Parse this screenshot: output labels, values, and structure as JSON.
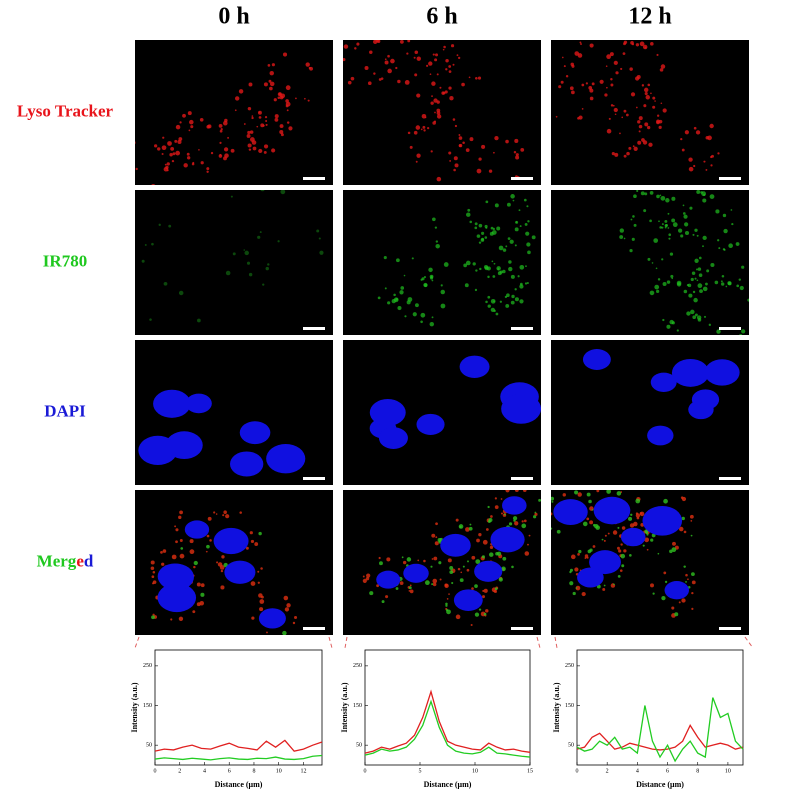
{
  "column_headers": [
    "0 h",
    "6 h",
    "12 h"
  ],
  "rows": [
    {
      "label": "Lyso Tracker",
      "color": "#e8141b"
    },
    {
      "label": "IR780",
      "color": "#1fc81f"
    },
    {
      "label": "DAPI",
      "color": "#1a1ad6"
    },
    {
      "label_parts": [
        {
          "text": "Merg",
          "color": "#1fc81f"
        },
        {
          "text": "e",
          "color": "#e8141b"
        },
        {
          "text": "d",
          "color": "#1a1ad6"
        }
      ]
    }
  ],
  "chart_data": [
    {
      "type": "line",
      "ylabel": "Intensity (a.u.)",
      "xlabel": "Distance (μm)",
      "x": [
        0,
        0.75,
        1.5,
        2.25,
        3,
        3.75,
        4.5,
        5.25,
        6,
        6.75,
        7.5,
        8.25,
        9,
        9.75,
        10.5,
        11.25,
        12,
        12.75,
        13.5
      ],
      "series": [
        {
          "color": "#e02020",
          "values": [
            35,
            40,
            38,
            45,
            50,
            42,
            40,
            48,
            55,
            45,
            42,
            38,
            60,
            45,
            62,
            35,
            40,
            50,
            58
          ]
        },
        {
          "color": "#22cc22",
          "values": [
            15,
            18,
            16,
            14,
            17,
            15,
            13,
            16,
            18,
            15,
            14,
            17,
            16,
            20,
            15,
            14,
            16,
            22,
            24
          ]
        }
      ],
      "xlim": [
        0,
        13.5
      ],
      "xticks": [
        0,
        2,
        4,
        6,
        8,
        10,
        12
      ],
      "ylim": [
        0,
        290
      ],
      "yticks": [
        50,
        150,
        250
      ]
    },
    {
      "type": "line",
      "ylabel": "Intensity (a.u.)",
      "xlabel": "Distance (μm)",
      "x": [
        0,
        0.75,
        1.5,
        2.25,
        3,
        3.75,
        4.5,
        5.25,
        6,
        6.75,
        7.5,
        8.25,
        9,
        9.75,
        10.5,
        11.25,
        12,
        12.75,
        13.5,
        14.25,
        15
      ],
      "series": [
        {
          "color": "#e02020",
          "values": [
            30,
            35,
            45,
            40,
            48,
            55,
            75,
            120,
            185,
            110,
            60,
            50,
            45,
            40,
            38,
            55,
            45,
            38,
            40,
            35,
            32
          ]
        },
        {
          "color": "#22cc22",
          "values": [
            25,
            30,
            40,
            35,
            38,
            45,
            65,
            100,
            160,
            95,
            50,
            35,
            30,
            28,
            32,
            45,
            30,
            28,
            25,
            22,
            20
          ]
        }
      ],
      "xlim": [
        0,
        15
      ],
      "xticks": [
        0,
        5,
        10,
        15
      ],
      "ylim": [
        0,
        290
      ],
      "yticks": [
        50,
        150,
        250
      ]
    },
    {
      "type": "line",
      "ylabel": "Intensity (a.u.)",
      "xlabel": "Distance (μm)",
      "x": [
        0,
        0.5,
        1,
        1.5,
        2,
        2.5,
        3,
        3.5,
        4,
        4.5,
        5,
        5.5,
        6,
        6.5,
        7,
        7.5,
        8,
        8.5,
        9,
        9.5,
        10,
        10.5,
        11
      ],
      "series": [
        {
          "color": "#e02020",
          "values": [
            40,
            45,
            70,
            80,
            60,
            40,
            45,
            55,
            50,
            45,
            40,
            38,
            40,
            45,
            60,
            100,
            70,
            45,
            50,
            55,
            50,
            40,
            45
          ]
        },
        {
          "color": "#22cc22",
          "values": [
            45,
            35,
            40,
            60,
            50,
            70,
            40,
            45,
            30,
            150,
            60,
            20,
            50,
            10,
            40,
            60,
            30,
            20,
            170,
            120,
            130,
            60,
            40
          ]
        }
      ],
      "xlim": [
        0,
        11
      ],
      "xticks": [
        0,
        2,
        4,
        6,
        8,
        10
      ],
      "ylim": [
        0,
        290
      ],
      "yticks": [
        50,
        150,
        250
      ]
    }
  ]
}
